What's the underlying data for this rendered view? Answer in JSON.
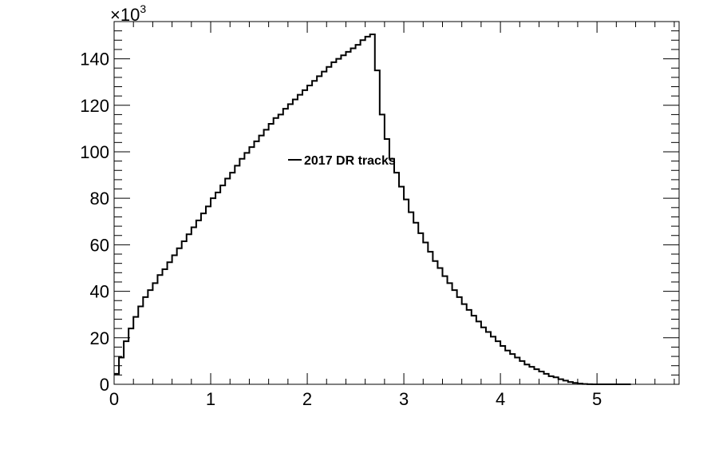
{
  "chart_data": {
    "type": "histogram-step",
    "title": "",
    "xlabel": "",
    "ylabel": "",
    "y_multiplier_label": "×10",
    "y_multiplier_exponent": "3",
    "xlim": [
      0,
      5.85
    ],
    "ylim": [
      0,
      156
    ],
    "x_ticks": [
      0,
      1,
      2,
      3,
      4,
      5
    ],
    "y_ticks": [
      0,
      20,
      40,
      60,
      80,
      100,
      120,
      140
    ],
    "bin_width": 0.05,
    "grid": false,
    "legend": {
      "position": "center",
      "entries": [
        "2017 DR tracks"
      ]
    },
    "series": [
      {
        "name": "2017 DR tracks",
        "color": "#000000",
        "values": [
          4.5,
          11.5,
          18.5,
          24,
          29,
          33.5,
          37.5,
          40.5,
          43.5,
          47,
          49.5,
          52.5,
          55.5,
          58.5,
          61.5,
          64.5,
          67.5,
          70.5,
          73.5,
          76.5,
          80,
          82.5,
          85.5,
          88.5,
          91,
          94,
          97,
          99.5,
          102,
          104.5,
          107,
          109.5,
          112,
          114.5,
          116,
          118.5,
          120.5,
          122.5,
          124.5,
          126.5,
          128.5,
          130.5,
          132.5,
          134.5,
          136.5,
          138.5,
          140,
          141.5,
          143,
          144.5,
          146,
          148,
          149.5,
          150.5,
          135,
          116,
          105.5,
          97,
          91,
          85,
          79.5,
          74,
          69.5,
          65,
          61,
          57,
          53,
          50,
          46.5,
          43.5,
          40.5,
          37.5,
          34.5,
          32,
          29.5,
          27,
          24.5,
          22.5,
          20.5,
          18.5,
          16.5,
          14.5,
          13,
          11.5,
          10,
          8.5,
          7.5,
          6.5,
          5.5,
          4.5,
          3.5,
          3,
          2.2,
          1.6,
          1,
          0.6,
          0.3,
          0.15,
          0.05,
          0.02,
          0.01,
          0.005,
          0.002,
          0.001,
          0.0005,
          0.0002,
          0.0001
        ]
      }
    ]
  }
}
